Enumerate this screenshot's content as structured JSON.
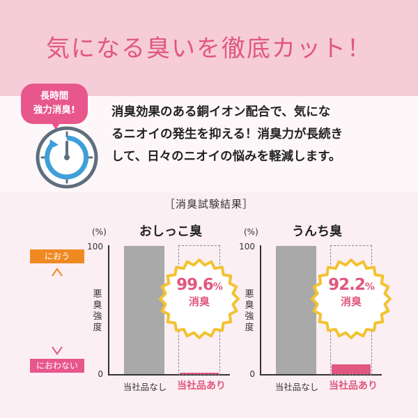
{
  "headline": "気になる臭いを徹底カット！",
  "badge": {
    "line1": "長時間",
    "line2": "強力消臭!"
  },
  "description": {
    "line1": "消臭効果のある銅イオン配合で、気にな",
    "line2": "るニオイの発生を抑える！消臭力が長続き",
    "line3": "して、日々のニオイの悩みを軽減します。"
  },
  "results_title": "［消臭試験結果］",
  "scale_labels": {
    "top": "におう",
    "bottom": "におわない"
  },
  "colors": {
    "accent": "#e0577f",
    "orange": "#ef8a23",
    "bar_gray": "#a9a9a9"
  },
  "icons": [
    "clock-icon",
    "double-arrow-icon"
  ],
  "chart_data": [
    {
      "type": "bar",
      "title": "おしっこ臭",
      "unit": "(%)",
      "ylabel": "悪臭強度",
      "ylim": [
        0,
        100
      ],
      "yticks": [
        "100",
        "0"
      ],
      "categories": [
        "当社品なし",
        "当社品あり"
      ],
      "values": [
        100,
        0.4
      ],
      "callout_value": "99.6",
      "callout_unit": "%",
      "callout_label": "消臭"
    },
    {
      "type": "bar",
      "title": "うんち臭",
      "unit": "(%)",
      "ylabel": "悪臭強度",
      "ylim": [
        0,
        100
      ],
      "yticks": [
        "100",
        "0"
      ],
      "categories": [
        "当社品なし",
        "当社品あり"
      ],
      "values": [
        100,
        7.8
      ],
      "callout_value": "92.2",
      "callout_unit": "%",
      "callout_label": "消臭"
    }
  ]
}
